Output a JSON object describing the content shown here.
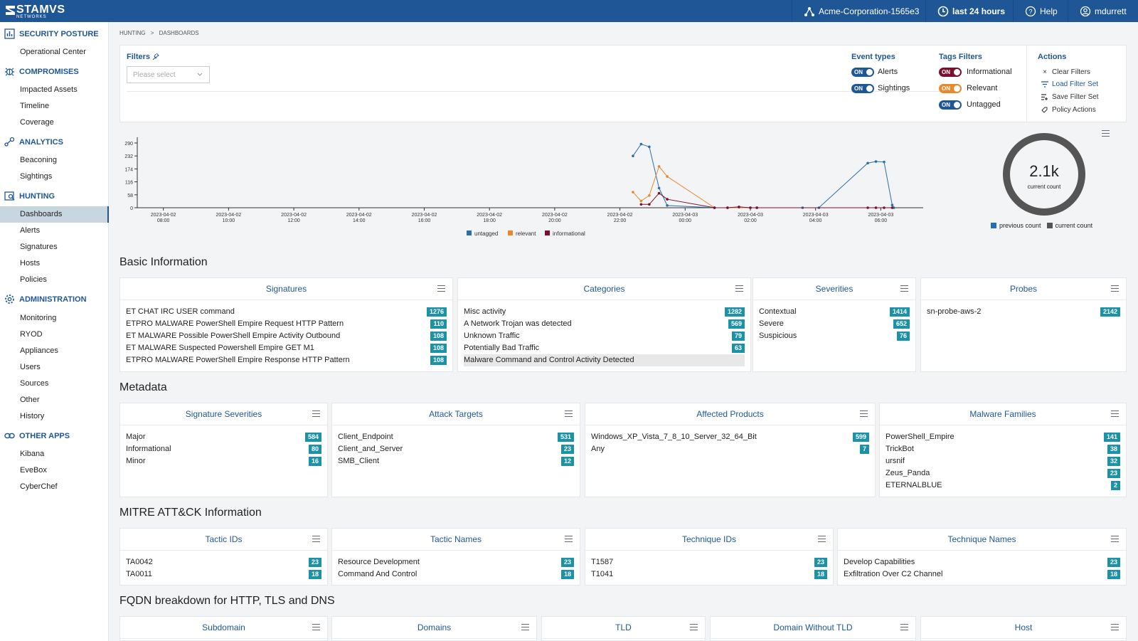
{
  "app": {
    "logo": "STAMVS",
    "logo_sub": "NETWORKS"
  },
  "topbar": {
    "tenant": "Acme-Corporation-1565e3",
    "period": "last 24 hours",
    "help": "Help",
    "user": "mdurrett"
  },
  "sidebar": {
    "security_posture": "SECURITY POSTURE",
    "operational_center": "Operational Center",
    "compromises": "COMPROMISES",
    "impacted_assets": "Impacted Assets",
    "timeline": "Timeline",
    "coverage": "Coverage",
    "analytics": "ANALYTICS",
    "beaconing": "Beaconing",
    "sightings": "Sightings",
    "hunting": "HUNTING",
    "dashboards": "Dashboards",
    "alerts": "Alerts",
    "signatures": "Signatures",
    "hosts": "Hosts",
    "policies": "Policies",
    "administration": "ADMINISTRATION",
    "monitoring": "Monitoring",
    "ryod": "RYOD",
    "appliances": "Appliances",
    "users": "Users",
    "sources": "Sources",
    "other": "Other",
    "history": "History",
    "other_apps": "OTHER APPS",
    "kibana": "Kibana",
    "evebox": "EveBox",
    "cyberchef": "CyberChef"
  },
  "breadcrumb": {
    "first": "HUNTING",
    "sep": ">",
    "second": "DASHBOARDS"
  },
  "filters": {
    "title": "Filters",
    "placeholder": "Please select",
    "event_types_title": "Event types",
    "alerts": "Alerts",
    "sightings": "Sightings",
    "on": "ON",
    "tags_title": "Tags Filters",
    "informational": "Informational",
    "relevant": "Relevant",
    "untagged": "Untagged",
    "actions_title": "Actions",
    "clear": "Clear Filters",
    "load": "Load Filter Set",
    "save": "Save Filter Set",
    "policy": "Policy Actions"
  },
  "colors": {
    "brand": "#1f5796",
    "badge": "#1b92a8",
    "untagged": "#2c6fa8",
    "relevant": "#e8892e",
    "informational": "#7a0f2e"
  },
  "chart_data": {
    "type": "line",
    "y_ticks": [
      "290",
      "232",
      "174",
      "116",
      "58",
      "0"
    ],
    "ylim": [
      0,
      290
    ],
    "x_ticks": [
      "2023-04-02|08:00",
      "2023-04-02|10:00",
      "2023-04-02|12:00",
      "2023-04-02|14:00",
      "2023-04-02|16:00",
      "2023-04-02|18:00",
      "2023-04-02|20:00",
      "2023-04-02|22:00",
      "2023-04-03|00:00",
      "2023-04-03|02:00",
      "2023-04-03|04:00",
      "2023-04-03|06:00"
    ],
    "x_hours_note": "",
    "series": [
      {
        "name": "untagged",
        "color": "#2c6fa8",
        "points": [
          [
            22.4,
            232
          ],
          [
            22.65,
            285
          ],
          [
            22.9,
            273
          ],
          [
            23.2,
            88
          ],
          [
            23.45,
            10
          ],
          [
            24.9,
            0
          ],
          [
            25.3,
            0
          ],
          [
            25.65,
            2
          ],
          [
            26,
            0
          ],
          [
            26.2,
            0
          ],
          [
            27.6,
            0
          ],
          [
            28.1,
            0
          ],
          [
            29.6,
            200
          ],
          [
            29.85,
            207
          ],
          [
            30.1,
            205
          ],
          [
            30.35,
            12
          ],
          [
            30.4,
            0
          ]
        ]
      },
      {
        "name": "relevant",
        "color": "#e8892e",
        "points": [
          [
            22.4,
            70
          ],
          [
            22.65,
            30
          ],
          [
            22.9,
            55
          ],
          [
            23.2,
            185
          ],
          [
            23.45,
            140
          ],
          [
            24.9,
            0
          ],
          [
            25.3,
            0
          ],
          [
            26,
            0
          ],
          [
            26.2,
            0
          ]
        ]
      },
      {
        "name": "informational",
        "color": "#7a0f2e",
        "points": [
          [
            22.65,
            15
          ],
          [
            22.9,
            15
          ],
          [
            23.2,
            65
          ],
          [
            23.45,
            38
          ],
          [
            24.9,
            0
          ],
          [
            25.3,
            0
          ],
          [
            25.65,
            4
          ],
          [
            26,
            0
          ],
          [
            26.2,
            0
          ],
          [
            29.6,
            0
          ],
          [
            29.85,
            0
          ],
          [
            30.1,
            0
          ],
          [
            30.35,
            0
          ]
        ]
      }
    ],
    "legend": [
      "untagged",
      "relevant",
      "informational"
    ]
  },
  "gauge": {
    "value": "2.1k",
    "label": "current count",
    "legend_prev": "previous count",
    "legend_cur": "current count",
    "fraction": 1.0
  },
  "sections": {
    "basic": "Basic Information",
    "metadata": "Metadata",
    "mitre": "MITRE ATT&CK Information",
    "fqdn": "FQDN breakdown for HTTP, TLS and DNS"
  },
  "panels": {
    "signatures": {
      "title": "Signatures",
      "rows": [
        {
          "label": "ET CHAT IRC USER command",
          "value": "1276"
        },
        {
          "label": "ETPRO MALWARE PowerShell Empire Request HTTP Pattern",
          "value": "110"
        },
        {
          "label": "ET MALWARE Possible PowerShell Empire Activity Outbound",
          "value": "108"
        },
        {
          "label": "ET MALWARE Suspected Powershell Empire GET M1",
          "value": "108"
        },
        {
          "label": "ETPRO MALWARE PowerShell Empire Response HTTP Pattern",
          "value": "108"
        }
      ]
    },
    "categories": {
      "title": "Categories",
      "rows": [
        {
          "label": "Misc activity",
          "value": "1282"
        },
        {
          "label": "A Network Trojan was detected",
          "value": "569"
        },
        {
          "label": "Unknown Traffic",
          "value": "79"
        },
        {
          "label": "Potentially Bad Traffic",
          "value": "63"
        },
        {
          "label": "Malware Command and Control Activity Detected",
          "value": ""
        }
      ]
    },
    "severities": {
      "title": "Severities",
      "rows": [
        {
          "label": "Contextual",
          "value": "1414"
        },
        {
          "label": "Severe",
          "value": "652"
        },
        {
          "label": "Suspicious",
          "value": "76"
        }
      ]
    },
    "probes": {
      "title": "Probes",
      "rows": [
        {
          "label": "sn-probe-aws-2",
          "value": "2142"
        }
      ]
    },
    "sig_severities": {
      "title": "Signature Severities",
      "rows": [
        {
          "label": "Major",
          "value": "584"
        },
        {
          "label": "Informational",
          "value": "80"
        },
        {
          "label": "Minor",
          "value": "16"
        }
      ]
    },
    "attack_targets": {
      "title": "Attack Targets",
      "rows": [
        {
          "label": "Client_Endpoint",
          "value": "531"
        },
        {
          "label": "Client_and_Server",
          "value": "23"
        },
        {
          "label": "SMB_Client",
          "value": "12"
        }
      ]
    },
    "affected_products": {
      "title": "Affected Products",
      "rows": [
        {
          "label": "Windows_XP_Vista_7_8_10_Server_32_64_Bit",
          "value": "599"
        },
        {
          "label": "Any",
          "value": "7"
        }
      ]
    },
    "malware_families": {
      "title": "Malware Families",
      "rows": [
        {
          "label": "PowerShell_Empire",
          "value": "141"
        },
        {
          "label": "TrickBot",
          "value": "38"
        },
        {
          "label": "ursnif",
          "value": "32"
        },
        {
          "label": "Zeus_Panda",
          "value": "23"
        },
        {
          "label": "ETERNALBLUE",
          "value": "2"
        }
      ]
    },
    "tactic_ids": {
      "title": "Tactic IDs",
      "rows": [
        {
          "label": "TA0042",
          "value": "23"
        },
        {
          "label": "TA0011",
          "value": "18"
        }
      ]
    },
    "tactic_names": {
      "title": "Tactic Names",
      "rows": [
        {
          "label": "Resource Development",
          "value": "23"
        },
        {
          "label": "Command And Control",
          "value": "18"
        }
      ]
    },
    "technique_ids": {
      "title": "Technique IDs",
      "rows": [
        {
          "label": "T1587",
          "value": "23"
        },
        {
          "label": "T1041",
          "value": "18"
        }
      ]
    },
    "technique_names": {
      "title": "Technique Names",
      "rows": [
        {
          "label": "Develop Capabilities",
          "value": "23"
        },
        {
          "label": "Exfiltration Over C2 Channel",
          "value": "18"
        }
      ]
    },
    "subdomain": {
      "title": "Subdomain",
      "rows": []
    },
    "domains": {
      "title": "Domains",
      "rows": []
    },
    "tld": {
      "title": "TLD",
      "rows": []
    },
    "domain_without_tld": {
      "title": "Domain Without TLD",
      "rows": []
    },
    "host": {
      "title": "Host",
      "rows": []
    }
  }
}
